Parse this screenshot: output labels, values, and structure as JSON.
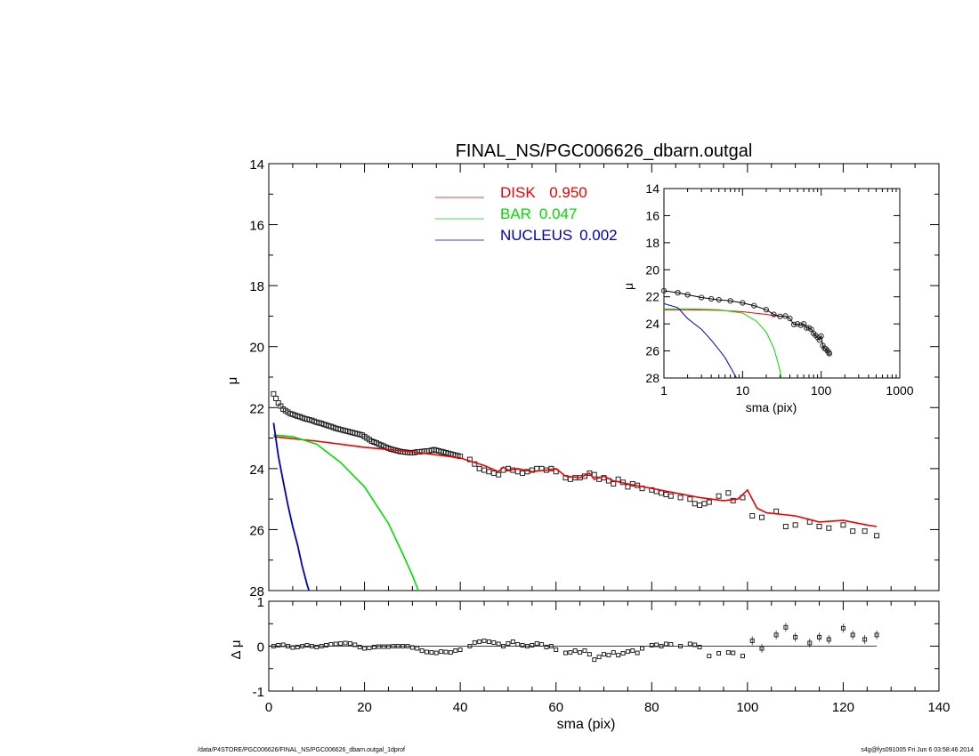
{
  "chart_data": [
    {
      "type": "scatter",
      "panel": "main",
      "title": "FINAL_NS/PGC006626_dbarn.outgal",
      "xlabel": "",
      "ylabel": "μ",
      "xlim": [
        0,
        140
      ],
      "ylim": [
        28,
        14
      ],
      "x_inverted": false,
      "y_inverted": true,
      "xticks": [],
      "yticks": [
        "14",
        "16",
        "18",
        "20",
        "22",
        "24",
        "26",
        "28"
      ],
      "legend": [
        {
          "label": "DISK",
          "value": "0.950",
          "color": "#ee0000"
        },
        {
          "label": "BAR",
          "value": "0.047",
          "color": "#00dd00"
        },
        {
          "label": "NUCLEUS",
          "value": "0.002",
          "color": "#0000bb"
        }
      ],
      "legend_placement": "top-center",
      "observed": {
        "marker": "open-square",
        "x": [
          1.0,
          1.5,
          2.0,
          2.5,
          3.0,
          3.5,
          4.0,
          4.5,
          5.0,
          5.5,
          6.0,
          6.5,
          7.0,
          7.5,
          8.0,
          8.5,
          9.0,
          9.5,
          10.0,
          10.5,
          11.0,
          11.5,
          12.0,
          12.5,
          13.0,
          13.5,
          14.0,
          14.5,
          15.0,
          15.5,
          16.0,
          16.5,
          17.0,
          17.5,
          18.0,
          18.5,
          19.0,
          19.5,
          20.0,
          20.5,
          21.0,
          21.5,
          22.0,
          22.5,
          23.0,
          23.5,
          24.0,
          24.5,
          25.0,
          25.5,
          26.0,
          26.5,
          27.0,
          27.5,
          28.0,
          28.5,
          29.0,
          29.5,
          30.0,
          30.5,
          31.0,
          31.5,
          32.0,
          32.5,
          33.0,
          33.5,
          34.0,
          34.5,
          35.0,
          35.5,
          36.0,
          36.5,
          37.0,
          37.5,
          38.0,
          38.5,
          39.0,
          39.5,
          40.0,
          42.0,
          43.0,
          44.0,
          45.0,
          46.0,
          47.0,
          48.0,
          49.0,
          50.0,
          51.0,
          52.0,
          53.0,
          54.0,
          55.0,
          56.0,
          57.0,
          58.0,
          59.0,
          60.0,
          62.0,
          63.0,
          64.0,
          65.0,
          66.0,
          67.0,
          68.0,
          69.0,
          70.0,
          71.0,
          72.0,
          73.0,
          74.0,
          75.0,
          76.0,
          77.0,
          78.0,
          80.0,
          81.0,
          82.0,
          83.0,
          84.0,
          86.0,
          88.0,
          89.0,
          90.0,
          91.0,
          92.0,
          94.0,
          96.0,
          97.0,
          99.0,
          101.0,
          103.0,
          106.0,
          108.0,
          110.0,
          113.0,
          115.0,
          117.0,
          120.0,
          122.0,
          124.5,
          127.0
        ],
        "y": [
          21.55,
          21.7,
          21.85,
          21.95,
          22.05,
          22.1,
          22.15,
          22.2,
          22.22,
          22.25,
          22.28,
          22.3,
          22.33,
          22.36,
          22.38,
          22.4,
          22.42,
          22.45,
          22.48,
          22.5,
          22.52,
          22.55,
          22.57,
          22.6,
          22.62,
          22.65,
          22.68,
          22.7,
          22.72,
          22.74,
          22.76,
          22.78,
          22.8,
          22.82,
          22.84,
          22.86,
          22.88,
          22.9,
          22.95,
          23.0,
          23.05,
          23.1,
          23.13,
          23.16,
          23.2,
          23.23,
          23.26,
          23.3,
          23.33,
          23.36,
          23.38,
          23.4,
          23.42,
          23.44,
          23.45,
          23.46,
          23.47,
          23.48,
          23.48,
          23.47,
          23.45,
          23.45,
          23.44,
          23.43,
          23.42,
          23.42,
          23.4,
          23.38,
          23.4,
          23.42,
          23.44,
          23.46,
          23.48,
          23.5,
          23.52,
          23.54,
          23.56,
          23.58,
          23.6,
          23.7,
          23.85,
          24.0,
          24.05,
          24.1,
          24.15,
          24.2,
          24.05,
          24.0,
          24.05,
          24.1,
          24.15,
          24.1,
          24.05,
          24.0,
          24.0,
          24.05,
          24.0,
          24.1,
          24.3,
          24.35,
          24.3,
          24.3,
          24.25,
          24.15,
          24.2,
          24.35,
          24.3,
          24.4,
          24.5,
          24.35,
          24.45,
          24.6,
          24.5,
          24.55,
          24.65,
          24.7,
          24.75,
          24.8,
          24.85,
          24.9,
          24.95,
          25.0,
          25.15,
          25.2,
          25.15,
          25.1,
          24.9,
          24.8,
          25.05,
          24.95,
          25.55,
          25.6,
          25.4,
          25.9,
          25.85,
          25.75,
          25.9,
          25.95,
          25.85,
          26.05,
          26.05,
          26.2
        ]
      },
      "model_disk": {
        "x": [
          1,
          10,
          20,
          30,
          40,
          45,
          48,
          49,
          50,
          52,
          55,
          58,
          60,
          62,
          65,
          67,
          68,
          70,
          72,
          75,
          80,
          85,
          90,
          95,
          98,
          100,
          101,
          102,
          104,
          110,
          115,
          120,
          125,
          127
        ],
        "y": [
          22.95,
          23.1,
          23.3,
          23.45,
          23.65,
          23.9,
          24.1,
          23.95,
          24.05,
          24.0,
          24.1,
          24.05,
          24.0,
          24.25,
          24.3,
          24.15,
          24.35,
          24.25,
          24.4,
          24.5,
          24.65,
          24.8,
          24.95,
          25.05,
          25.0,
          24.7,
          25.0,
          25.3,
          25.45,
          25.55,
          25.75,
          25.7,
          25.85,
          25.9
        ]
      },
      "model_bar": {
        "x": [
          1,
          5,
          10,
          15,
          20,
          25,
          28,
          30,
          31,
          32
        ],
        "y": [
          22.9,
          22.95,
          23.2,
          23.8,
          24.6,
          25.8,
          26.8,
          27.5,
          27.9,
          28.3
        ]
      },
      "model_nucleus": {
        "x": [
          1,
          2,
          3,
          4,
          5,
          6,
          7,
          8,
          8.5
        ],
        "y": [
          22.5,
          23.6,
          24.4,
          25.2,
          25.9,
          26.5,
          27.2,
          27.8,
          28.05
        ]
      }
    },
    {
      "type": "line",
      "panel": "inset",
      "xlabel": "sma (pix)",
      "ylabel": "μ",
      "x_scale": "log",
      "xlim": [
        1,
        1000
      ],
      "ylim": [
        28,
        14
      ],
      "xticks": [
        "1",
        "10",
        "100",
        "1000"
      ],
      "yticks": [
        "14",
        "16",
        "18",
        "20",
        "22",
        "24",
        "26",
        "28"
      ],
      "observed": {
        "x": [
          1.0,
          1.5,
          2.0,
          3.0,
          4.0,
          5.0,
          7.0,
          10.0,
          14.0,
          20.0,
          25.0,
          30.0,
          35.0,
          40.0,
          45.0,
          50.0,
          55.0,
          60.0,
          65.0,
          70.0,
          75.0,
          80.0,
          85.0,
          90.0,
          95.0,
          100.0,
          105.0,
          110.0,
          115.0,
          120.0,
          125.0,
          127.0
        ],
        "y": [
          21.55,
          21.7,
          21.85,
          22.05,
          22.15,
          22.22,
          22.3,
          22.45,
          22.65,
          22.95,
          23.3,
          23.45,
          23.42,
          23.6,
          24.05,
          24.0,
          24.1,
          24.0,
          24.3,
          24.3,
          24.4,
          24.7,
          24.85,
          25.0,
          25.2,
          24.9,
          25.6,
          25.8,
          25.85,
          26.0,
          26.1,
          26.2
        ]
      },
      "model_disk": {
        "x": [
          1,
          2,
          5,
          10,
          20,
          30
        ],
        "y": [
          22.95,
          22.96,
          23.0,
          23.1,
          23.3,
          23.45
        ]
      },
      "model_bar": {
        "x": [
          1,
          2,
          5,
          10,
          15,
          20,
          25,
          28,
          30,
          31
        ],
        "y": [
          22.9,
          22.9,
          22.95,
          23.2,
          23.8,
          24.6,
          25.8,
          26.8,
          27.5,
          28.0
        ]
      },
      "model_nucleus": {
        "x": [
          1,
          1.5,
          2,
          3,
          4,
          5,
          6,
          7,
          8,
          8.5
        ],
        "y": [
          22.5,
          22.8,
          23.6,
          24.4,
          25.2,
          25.9,
          26.5,
          27.2,
          27.8,
          28.05
        ]
      }
    },
    {
      "type": "scatter",
      "panel": "residual",
      "xlabel": "sma (pix)",
      "ylabel": "Δ μ",
      "xlim": [
        0,
        140
      ],
      "ylim": [
        -1,
        1
      ],
      "xticks": [
        "0",
        "20",
        "40",
        "60",
        "80",
        "100",
        "120",
        "140"
      ],
      "yticks": [
        "1",
        "0",
        "-1"
      ],
      "reference_line": 0,
      "x": [
        1,
        2,
        3,
        4,
        5,
        6,
        7,
        8,
        9,
        10,
        11,
        12,
        13,
        14,
        15,
        16,
        17,
        18,
        19,
        20,
        21,
        22,
        23,
        24,
        25,
        26,
        27,
        28,
        29,
        30,
        31,
        32,
        33,
        34,
        35,
        36,
        37,
        38,
        39,
        40,
        42,
        43,
        44,
        45,
        46,
        47,
        48,
        49,
        50,
        51,
        52,
        53,
        54,
        55,
        56,
        57,
        58,
        59,
        60,
        62,
        63,
        64,
        65,
        66,
        67,
        68,
        69,
        70,
        71,
        72,
        73,
        74,
        75,
        76,
        77,
        78,
        80,
        81,
        82,
        83,
        84,
        86,
        88,
        89,
        90,
        92,
        94,
        96,
        97,
        99,
        101,
        103,
        106,
        108,
        110,
        113,
        115,
        117,
        120,
        122,
        124.5,
        127
      ],
      "y": [
        0.0,
        0.02,
        0.03,
        0.0,
        -0.03,
        -0.02,
        0.0,
        0.02,
        0.0,
        -0.02,
        0.0,
        0.02,
        0.04,
        0.05,
        0.06,
        0.07,
        0.06,
        0.03,
        -0.02,
        -0.05,
        -0.04,
        -0.02,
        -0.01,
        -0.01,
        -0.01,
        0.0,
        0.0,
        0.0,
        0.0,
        -0.03,
        -0.05,
        -0.1,
        -0.13,
        -0.14,
        -0.15,
        -0.12,
        -0.13,
        -0.14,
        -0.1,
        -0.08,
        0.0,
        0.08,
        0.1,
        0.12,
        0.1,
        0.08,
        0.05,
        0.0,
        0.06,
        0.1,
        0.04,
        0.02,
        0.0,
        0.02,
        0.06,
        0.04,
        -0.02,
        0.0,
        -0.08,
        -0.15,
        -0.14,
        -0.1,
        -0.14,
        -0.1,
        -0.18,
        -0.3,
        -0.24,
        -0.18,
        -0.2,
        -0.14,
        -0.2,
        -0.16,
        -0.12,
        -0.1,
        -0.15,
        -0.05,
        0.02,
        0.03,
        0.0,
        0.05,
        0.04,
        0.0,
        0.05,
        0.03,
        -0.02,
        -0.22,
        -0.16,
        -0.14,
        -0.15,
        -0.22,
        0.12,
        -0.05,
        0.25,
        0.42,
        0.2,
        0.07,
        0.2,
        0.15,
        0.4,
        0.25,
        0.15,
        0.25
      ]
    }
  ],
  "footer": {
    "left": "/data/P4STORE/PGC006626/FINAL_NS/PGC006626_dbarn.outgal_1dprof",
    "right": "s4g@fys091005  Fri Jun  6 03:58:46 2014"
  }
}
